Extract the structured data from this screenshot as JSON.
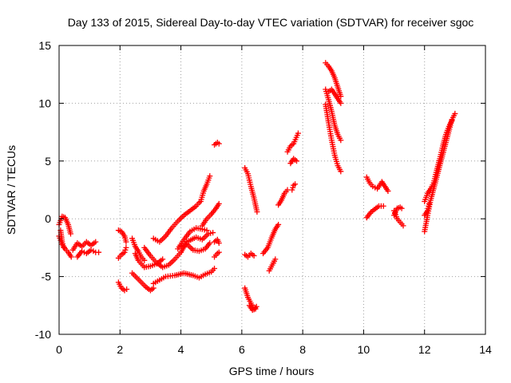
{
  "chart_data": {
    "type": "scatter",
    "title": "Day 133 of 2015, Sidereal Day-to-day VTEC variation (SDTVAR) for receiver sgoc",
    "xlabel": "GPS time / hours",
    "ylabel": "SDTVAR / TECUs",
    "xlim": [
      0,
      14
    ],
    "ylim": [
      -10,
      15
    ],
    "xticks": [
      "0",
      "2",
      "4",
      "6",
      "8",
      "10",
      "12",
      "14"
    ],
    "yticks": [
      "15",
      "10",
      "5",
      "0",
      "-5",
      "-10"
    ],
    "grid": true,
    "marker": "+",
    "series_color": "#ff0000",
    "segments": [
      [
        [
          0.0,
          -0.5
        ],
        [
          0.1,
          0.2
        ],
        [
          0.2,
          0.1
        ],
        [
          0.3,
          -0.5
        ],
        [
          0.38,
          -1.3
        ]
      ],
      [
        [
          0.0,
          -1.5
        ],
        [
          0.1,
          -2.2
        ],
        [
          0.2,
          -2.6
        ],
        [
          0.3,
          -2.9
        ],
        [
          0.4,
          -3.3
        ]
      ],
      [
        [
          0.05,
          -1.0
        ],
        [
          0.1,
          -2.0
        ],
        [
          0.15,
          -2.5
        ]
      ],
      [
        [
          0.45,
          -2.7
        ],
        [
          0.6,
          -2.1
        ],
        [
          0.75,
          -2.4
        ],
        [
          0.9,
          -2.0
        ],
        [
          1.05,
          -2.3
        ],
        [
          1.2,
          -2.0
        ]
      ],
      [
        [
          0.6,
          -3.3
        ],
        [
          0.75,
          -2.8
        ],
        [
          0.9,
          -3.0
        ],
        [
          1.05,
          -2.7
        ],
        [
          1.2,
          -2.9
        ],
        [
          1.3,
          -2.9
        ]
      ],
      [
        [
          1.95,
          -1.0
        ],
        [
          2.05,
          -1.1
        ],
        [
          2.15,
          -1.5
        ],
        [
          2.2,
          -2.0
        ]
      ],
      [
        [
          1.95,
          -3.4
        ],
        [
          2.05,
          -3.1
        ],
        [
          2.15,
          -2.9
        ],
        [
          2.2,
          -2.5
        ]
      ],
      [
        [
          1.95,
          -5.5
        ],
        [
          2.05,
          -6.0
        ],
        [
          2.15,
          -6.2
        ],
        [
          2.22,
          -6.1
        ]
      ],
      [
        [
          2.4,
          -1.7
        ],
        [
          2.5,
          -2.4
        ],
        [
          2.6,
          -2.8
        ],
        [
          2.7,
          -3.3
        ],
        [
          2.8,
          -3.6
        ]
      ],
      [
        [
          2.4,
          -4.7
        ],
        [
          2.55,
          -5.1
        ],
        [
          2.7,
          -5.5
        ],
        [
          2.85,
          -5.9
        ],
        [
          3.0,
          -6.2
        ],
        [
          3.1,
          -6.0
        ]
      ],
      [
        [
          2.5,
          -3.0
        ],
        [
          2.6,
          -3.6
        ],
        [
          2.7,
          -3.9
        ],
        [
          2.8,
          -4.2
        ],
        [
          3.0,
          -4.1
        ],
        [
          3.2,
          -3.9
        ],
        [
          3.4,
          -3.5
        ]
      ],
      [
        [
          2.8,
          -2.5
        ],
        [
          3.0,
          -3.2
        ],
        [
          3.2,
          -3.8
        ],
        [
          3.4,
          -4.2
        ],
        [
          3.6,
          -4.0
        ],
        [
          3.8,
          -3.5
        ],
        [
          4.0,
          -2.9
        ],
        [
          4.2,
          -2.0
        ],
        [
          4.5,
          -1.6
        ],
        [
          4.7,
          -1.8
        ],
        [
          4.9,
          -1.3
        ],
        [
          5.05,
          -1.2
        ]
      ],
      [
        [
          3.1,
          -1.7
        ],
        [
          3.3,
          -2.0
        ],
        [
          3.5,
          -1.5
        ],
        [
          3.7,
          -0.8
        ],
        [
          3.9,
          -0.2
        ],
        [
          4.1,
          0.3
        ],
        [
          4.3,
          0.7
        ],
        [
          4.5,
          1.1
        ],
        [
          4.6,
          1.4
        ]
      ],
      [
        [
          3.1,
          -5.6
        ],
        [
          3.3,
          -5.3
        ],
        [
          3.5,
          -5.0
        ],
        [
          3.8,
          -4.9
        ],
        [
          4.1,
          -4.7
        ],
        [
          4.4,
          -4.9
        ],
        [
          4.6,
          -5.1
        ],
        [
          4.8,
          -4.8
        ],
        [
          5.0,
          -4.6
        ],
        [
          5.1,
          -4.3
        ]
      ],
      [
        [
          3.9,
          -2.6
        ],
        [
          4.1,
          -1.8
        ],
        [
          4.3,
          -1.1
        ],
        [
          4.5,
          -0.8
        ],
        [
          4.7,
          -0.9
        ],
        [
          4.85,
          -1.0
        ]
      ],
      [
        [
          4.0,
          -2.4
        ],
        [
          4.2,
          -2.2
        ],
        [
          4.4,
          -2.7
        ],
        [
          4.6,
          -2.8
        ],
        [
          4.8,
          -2.6
        ],
        [
          4.95,
          -2.1
        ]
      ],
      [
        [
          4.7,
          -0.6
        ],
        [
          4.85,
          0.0
        ],
        [
          5.0,
          0.4
        ],
        [
          5.15,
          0.9
        ],
        [
          5.25,
          1.3
        ]
      ],
      [
        [
          4.65,
          1.5
        ],
        [
          4.75,
          2.4
        ],
        [
          4.85,
          3.0
        ],
        [
          4.95,
          3.7
        ]
      ],
      [
        [
          5.1,
          -3.3
        ],
        [
          5.2,
          -3.0
        ],
        [
          5.25,
          -2.9
        ]
      ],
      [
        [
          5.1,
          -2.0
        ],
        [
          5.2,
          -1.8
        ],
        [
          5.25,
          -2.1
        ]
      ],
      [
        [
          5.1,
          6.4
        ],
        [
          5.2,
          6.6
        ],
        [
          5.25,
          6.5
        ]
      ],
      [
        [
          6.1,
          4.4
        ],
        [
          6.2,
          3.9
        ],
        [
          6.3,
          2.8
        ],
        [
          6.4,
          1.8
        ],
        [
          6.5,
          0.6
        ]
      ],
      [
        [
          6.1,
          -3.1
        ],
        [
          6.2,
          -3.3
        ],
        [
          6.3,
          -3.0
        ],
        [
          6.4,
          -3.2
        ]
      ],
      [
        [
          6.1,
          -6.0
        ],
        [
          6.2,
          -6.8
        ],
        [
          6.3,
          -7.3
        ],
        [
          6.4,
          -7.8
        ],
        [
          6.48,
          -7.6
        ]
      ],
      [
        [
          6.25,
          -7.5
        ],
        [
          6.35,
          -7.9
        ],
        [
          6.45,
          -7.8
        ]
      ],
      [
        [
          6.7,
          -3.0
        ],
        [
          6.85,
          -2.5
        ],
        [
          7.0,
          -1.5
        ],
        [
          7.1,
          -0.9
        ],
        [
          7.2,
          -0.5
        ]
      ],
      [
        [
          6.9,
          -4.5
        ],
        [
          7.0,
          -4.0
        ],
        [
          7.1,
          -3.5
        ]
      ],
      [
        [
          7.2,
          1.2
        ],
        [
          7.3,
          1.6
        ],
        [
          7.4,
          2.2
        ],
        [
          7.5,
          2.5
        ]
      ],
      [
        [
          7.65,
          2.5
        ],
        [
          7.7,
          2.9
        ],
        [
          7.75,
          3.0
        ]
      ],
      [
        [
          7.6,
          4.8
        ],
        [
          7.7,
          5.2
        ],
        [
          7.8,
          5.0
        ]
      ],
      [
        [
          7.5,
          5.8
        ],
        [
          7.6,
          6.3
        ],
        [
          7.7,
          6.5
        ],
        [
          7.85,
          7.4
        ]
      ],
      [
        [
          8.75,
          13.5
        ],
        [
          8.85,
          13.2
        ],
        [
          8.95,
          12.8
        ],
        [
          9.05,
          12.2
        ],
        [
          9.15,
          11.4
        ],
        [
          9.25,
          10.6
        ]
      ],
      [
        [
          8.75,
          11.2
        ],
        [
          8.85,
          10.3
        ],
        [
          8.95,
          9.3
        ],
        [
          9.05,
          8.1
        ],
        [
          9.15,
          7.3
        ],
        [
          9.25,
          6.8
        ]
      ],
      [
        [
          8.75,
          9.9
        ],
        [
          8.85,
          8.3
        ],
        [
          8.95,
          6.8
        ],
        [
          9.05,
          5.5
        ],
        [
          9.15,
          4.6
        ],
        [
          9.25,
          4.1
        ]
      ],
      [
        [
          8.85,
          11.0
        ],
        [
          8.95,
          11.2
        ],
        [
          9.05,
          10.8
        ],
        [
          9.15,
          10.4
        ],
        [
          9.25,
          10.0
        ]
      ],
      [
        [
          10.1,
          3.6
        ],
        [
          10.2,
          3.1
        ],
        [
          10.3,
          2.8
        ],
        [
          10.45,
          2.6
        ],
        [
          10.6,
          3.2
        ],
        [
          10.7,
          2.8
        ],
        [
          10.8,
          2.4
        ]
      ],
      [
        [
          10.1,
          0.1
        ],
        [
          10.25,
          0.6
        ],
        [
          10.4,
          0.9
        ],
        [
          10.5,
          1.1
        ],
        [
          10.65,
          1.1
        ]
      ],
      [
        [
          11.0,
          0.7
        ],
        [
          11.1,
          0.0
        ],
        [
          11.2,
          -0.3
        ],
        [
          11.3,
          -0.6
        ]
      ],
      [
        [
          11.0,
          0.3
        ],
        [
          11.1,
          0.9
        ],
        [
          11.2,
          1.0
        ],
        [
          11.25,
          0.9
        ]
      ],
      [
        [
          12.0,
          -1.1
        ],
        [
          12.1,
          0.3
        ],
        [
          12.2,
          1.6
        ],
        [
          12.3,
          2.6
        ],
        [
          12.4,
          3.6
        ],
        [
          12.5,
          4.6
        ],
        [
          12.6,
          5.6
        ],
        [
          12.7,
          6.6
        ],
        [
          12.8,
          7.6
        ],
        [
          12.9,
          8.6
        ],
        [
          13.0,
          9.1
        ]
      ],
      [
        [
          12.0,
          1.5
        ],
        [
          12.1,
          2.2
        ],
        [
          12.2,
          2.6
        ],
        [
          12.3,
          3.1
        ],
        [
          12.4,
          4.2
        ],
        [
          12.5,
          5.2
        ],
        [
          12.6,
          6.3
        ],
        [
          12.7,
          7.3
        ],
        [
          12.8,
          8.0
        ],
        [
          12.9,
          8.5
        ]
      ],
      [
        [
          12.0,
          0.3
        ],
        [
          12.1,
          0.7
        ],
        [
          12.15,
          1.3
        ]
      ]
    ]
  }
}
